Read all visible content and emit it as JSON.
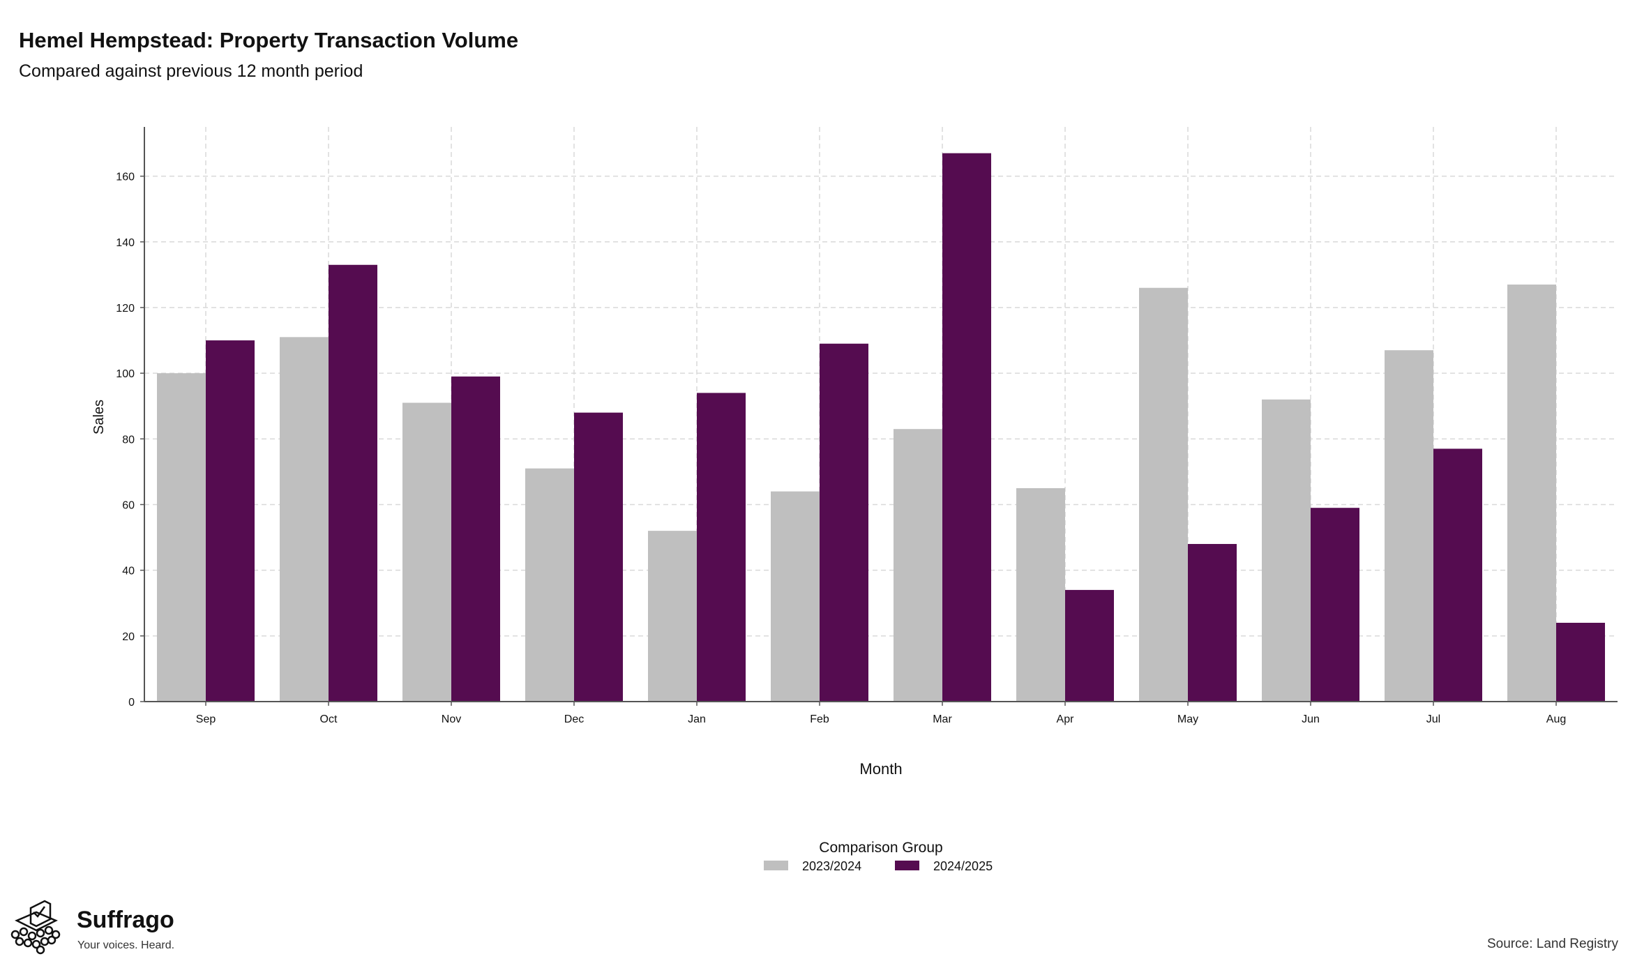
{
  "chart_data": {
    "type": "bar",
    "title": "Hemel Hempstead: Property Transaction Volume",
    "subtitle": "Compared against previous 12 month period",
    "xlabel": "Month",
    "ylabel": "Sales",
    "categories": [
      "Sep",
      "Oct",
      "Nov",
      "Dec",
      "Jan",
      "Feb",
      "Mar",
      "Apr",
      "May",
      "Jun",
      "Jul",
      "Aug"
    ],
    "series": [
      {
        "name": "2023/2024",
        "color": "#bfbfbf",
        "values": [
          100,
          111,
          91,
          71,
          52,
          64,
          83,
          65,
          126,
          92,
          107,
          127
        ]
      },
      {
        "name": "2024/2025",
        "color": "#550c50",
        "values": [
          110,
          133,
          99,
          88,
          94,
          109,
          167,
          34,
          48,
          59,
          77,
          24
        ]
      }
    ],
    "ylim": [
      0,
      175
    ],
    "yticks": [
      0,
      20,
      40,
      60,
      80,
      100,
      120,
      140,
      160
    ],
    "grid": true,
    "legend": {
      "title": "Comparison Group",
      "placement": "bottom"
    }
  },
  "branding": {
    "name": "Suffrago",
    "tagline": "Your voices. Heard.",
    "logo_icon": "ballot-box-crowd-icon"
  },
  "source": "Source: Land Registry"
}
